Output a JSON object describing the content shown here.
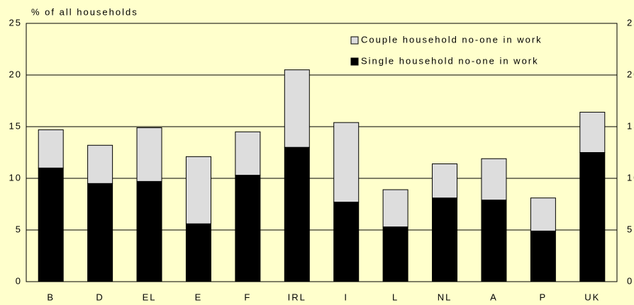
{
  "chart_data": {
    "type": "stacked_bar",
    "y_axis_label": "% of all households",
    "categories": [
      "B",
      "D",
      "EL",
      "E",
      "F",
      "IRL",
      "I",
      "L",
      "NL",
      "A",
      "P",
      "UK"
    ],
    "series": [
      {
        "name": "Single household no-one in work",
        "color": "#000000",
        "values": [
          11,
          9.5,
          9.7,
          5.6,
          10.3,
          13,
          7.7,
          5.3,
          8.1,
          7.9,
          4.9,
          12.5
        ]
      },
      {
        "name": "Couple household no-one in work",
        "color": "#dddddd",
        "values": [
          3.7,
          3.7,
          5.2,
          6.5,
          4.2,
          7.5,
          7.7,
          3.6,
          3.3,
          4.0,
          3.2,
          3.9
        ]
      }
    ],
    "ylim": [
      0,
      25
    ],
    "yticks": [
      0,
      5,
      10,
      15,
      20,
      25
    ],
    "grid": true,
    "legend": "top-right"
  }
}
